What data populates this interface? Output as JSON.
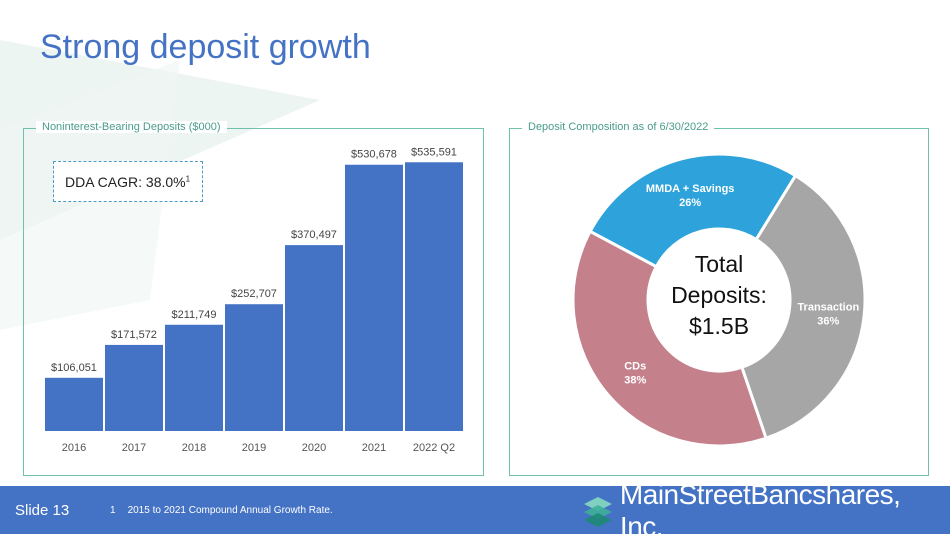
{
  "title": "Strong deposit growth",
  "left_panel": {
    "title": "Noninterest-Bearing Deposits ($000)",
    "cagr_label": "DDA CAGR: 38.0%",
    "cagr_footnote_marker": "1"
  },
  "right_panel": {
    "title": "Deposit Composition as of 6/30/2022",
    "center_line1": "Total",
    "center_line2": "Deposits:",
    "center_line3": "$1.5B"
  },
  "footer": {
    "slide_label": "Slide 13",
    "footnote_number": "1",
    "footnote_text": "2015 to 2021 Compound Annual Growth Rate.",
    "logo_text": "MainStreetBancshares, Inc."
  },
  "colors": {
    "bar": "#4472C4",
    "title": "#4472C4",
    "panel_border": "#6FC1AE",
    "footer": "#4472C4",
    "donut_mmda": "#2EA3DB",
    "donut_transaction": "#A6A6A6",
    "donut_cds": "#C4808B"
  },
  "chart_data": [
    {
      "type": "bar",
      "categories": [
        "2016",
        "2017",
        "2018",
        "2019",
        "2020",
        "2021",
        "2022 Q2"
      ],
      "values": [
        106051,
        171572,
        211749,
        252707,
        370497,
        530678,
        535591
      ],
      "value_labels": [
        "$106,051",
        "$171,572",
        "$211,749",
        "$252,707",
        "$370,497",
        "$530,678",
        "$535,591"
      ],
      "title": "Noninterest-Bearing Deposits ($000)",
      "ylim": [
        0,
        580000
      ],
      "grid": false
    },
    {
      "type": "pie",
      "donut": true,
      "title": "Deposit Composition as of 6/30/2022",
      "slices": [
        {
          "label": "MMDA + Savings",
          "value": 26,
          "pct_label": "26%",
          "color": "#2EA3DB"
        },
        {
          "label": "Transaction",
          "value": 36,
          "pct_label": "36%",
          "color": "#A6A6A6"
        },
        {
          "label": "CDs",
          "value": 38,
          "pct_label": "38%",
          "color": "#C4808B"
        }
      ],
      "center_text": "Total Deposits: $1.5B"
    }
  ]
}
